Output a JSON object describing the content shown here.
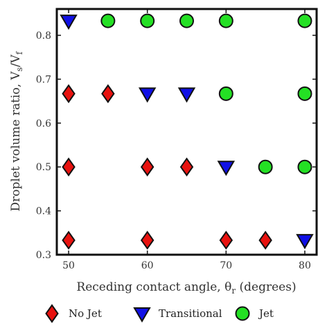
{
  "chart_data": {
    "type": "scatter",
    "xlabel": "Receding contact angle, θ",
    "xlabel_sub": "r",
    "xlabel_suffix": " (degrees)",
    "ylabel": "Droplet volume ratio, V",
    "ylabel_sub1": "s",
    "ylabel_mid": "/V",
    "ylabel_sub2": "f",
    "xlim": [
      48.5,
      81.5
    ],
    "ylim": [
      0.3,
      0.86
    ],
    "xticks": [
      50,
      60,
      70,
      80
    ],
    "yticks": [
      0.3,
      0.4,
      0.5,
      0.6,
      0.7,
      0.8
    ],
    "ytick_labels": [
      "0.3",
      "0.4",
      "0.5",
      "0.6",
      "0.7",
      "0.8"
    ],
    "grid": false,
    "legend_position": "bottom",
    "series": [
      {
        "name": "No Jet",
        "marker": "diamond",
        "color": "#e8120f",
        "points": [
          {
            "x": 50,
            "y": 0.667
          },
          {
            "x": 55,
            "y": 0.667
          },
          {
            "x": 50,
            "y": 0.5
          },
          {
            "x": 60,
            "y": 0.5
          },
          {
            "x": 65,
            "y": 0.5
          },
          {
            "x": 50,
            "y": 0.333
          },
          {
            "x": 60,
            "y": 0.333
          },
          {
            "x": 70,
            "y": 0.333
          },
          {
            "x": 75,
            "y": 0.333
          }
        ]
      },
      {
        "name": "Transitional",
        "marker": "triangle-down",
        "color": "#1010e6",
        "points": [
          {
            "x": 50,
            "y": 0.833
          },
          {
            "x": 60,
            "y": 0.667
          },
          {
            "x": 65,
            "y": 0.667
          },
          {
            "x": 70,
            "y": 0.5
          },
          {
            "x": 80,
            "y": 0.333
          }
        ]
      },
      {
        "name": "Jet",
        "marker": "circle",
        "color": "#24e024",
        "points": [
          {
            "x": 55,
            "y": 0.833
          },
          {
            "x": 60,
            "y": 0.833
          },
          {
            "x": 65,
            "y": 0.833
          },
          {
            "x": 70,
            "y": 0.833
          },
          {
            "x": 80,
            "y": 0.833
          },
          {
            "x": 70,
            "y": 0.667
          },
          {
            "x": 80,
            "y": 0.667
          },
          {
            "x": 75,
            "y": 0.5
          },
          {
            "x": 80,
            "y": 0.5
          }
        ]
      }
    ]
  }
}
